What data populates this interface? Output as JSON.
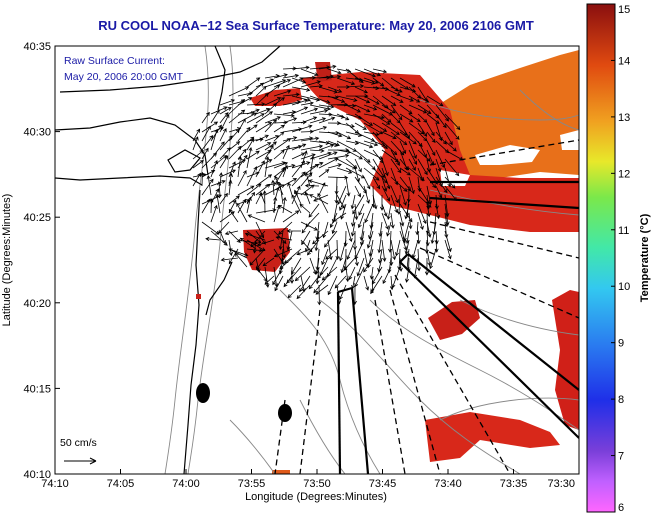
{
  "chart_data": {
    "type": "map",
    "title": "RU COOL  NOAA−12  Sea Surface Temperature:  May 20, 2006 2106 GMT",
    "annotation_lines": [
      "Raw Surface Current:",
      "May 20, 2006 20:00 GMT"
    ],
    "xlabel": "Longitude (Degrees:Minutes)",
    "ylabel": "Latitude (Degrees:Minutes)",
    "x_ticks": [
      "74:10",
      "74:05",
      "74:00",
      "73:55",
      "73:50",
      "73:45",
      "73:40",
      "73:35",
      "73:30"
    ],
    "y_ticks": [
      "40:35",
      "40:30",
      "40:25",
      "40:20",
      "40:15",
      "40:10"
    ],
    "colorbar": {
      "label": "Temperature (°C)",
      "ticks": [
        "15",
        "14",
        "13",
        "12",
        "11",
        "10",
        "9",
        "8",
        "7",
        "6"
      ],
      "range": [
        6,
        15
      ],
      "colors": [
        "#ff66ff",
        "#7a3fd9",
        "#1f2fe8",
        "#2a7cf0",
        "#33c8f0",
        "#42e8a8",
        "#7be84a",
        "#e8e82a",
        "#f0a020",
        "#e04a10",
        "#8a0f0f"
      ]
    },
    "scale_label": "50 cm/s",
    "sst_patch_color": "#d8281a",
    "sst_warm_color": "#e8701a",
    "vector_color": "#000000",
    "coast_color": "#000000",
    "bathy_color": "#888888"
  }
}
